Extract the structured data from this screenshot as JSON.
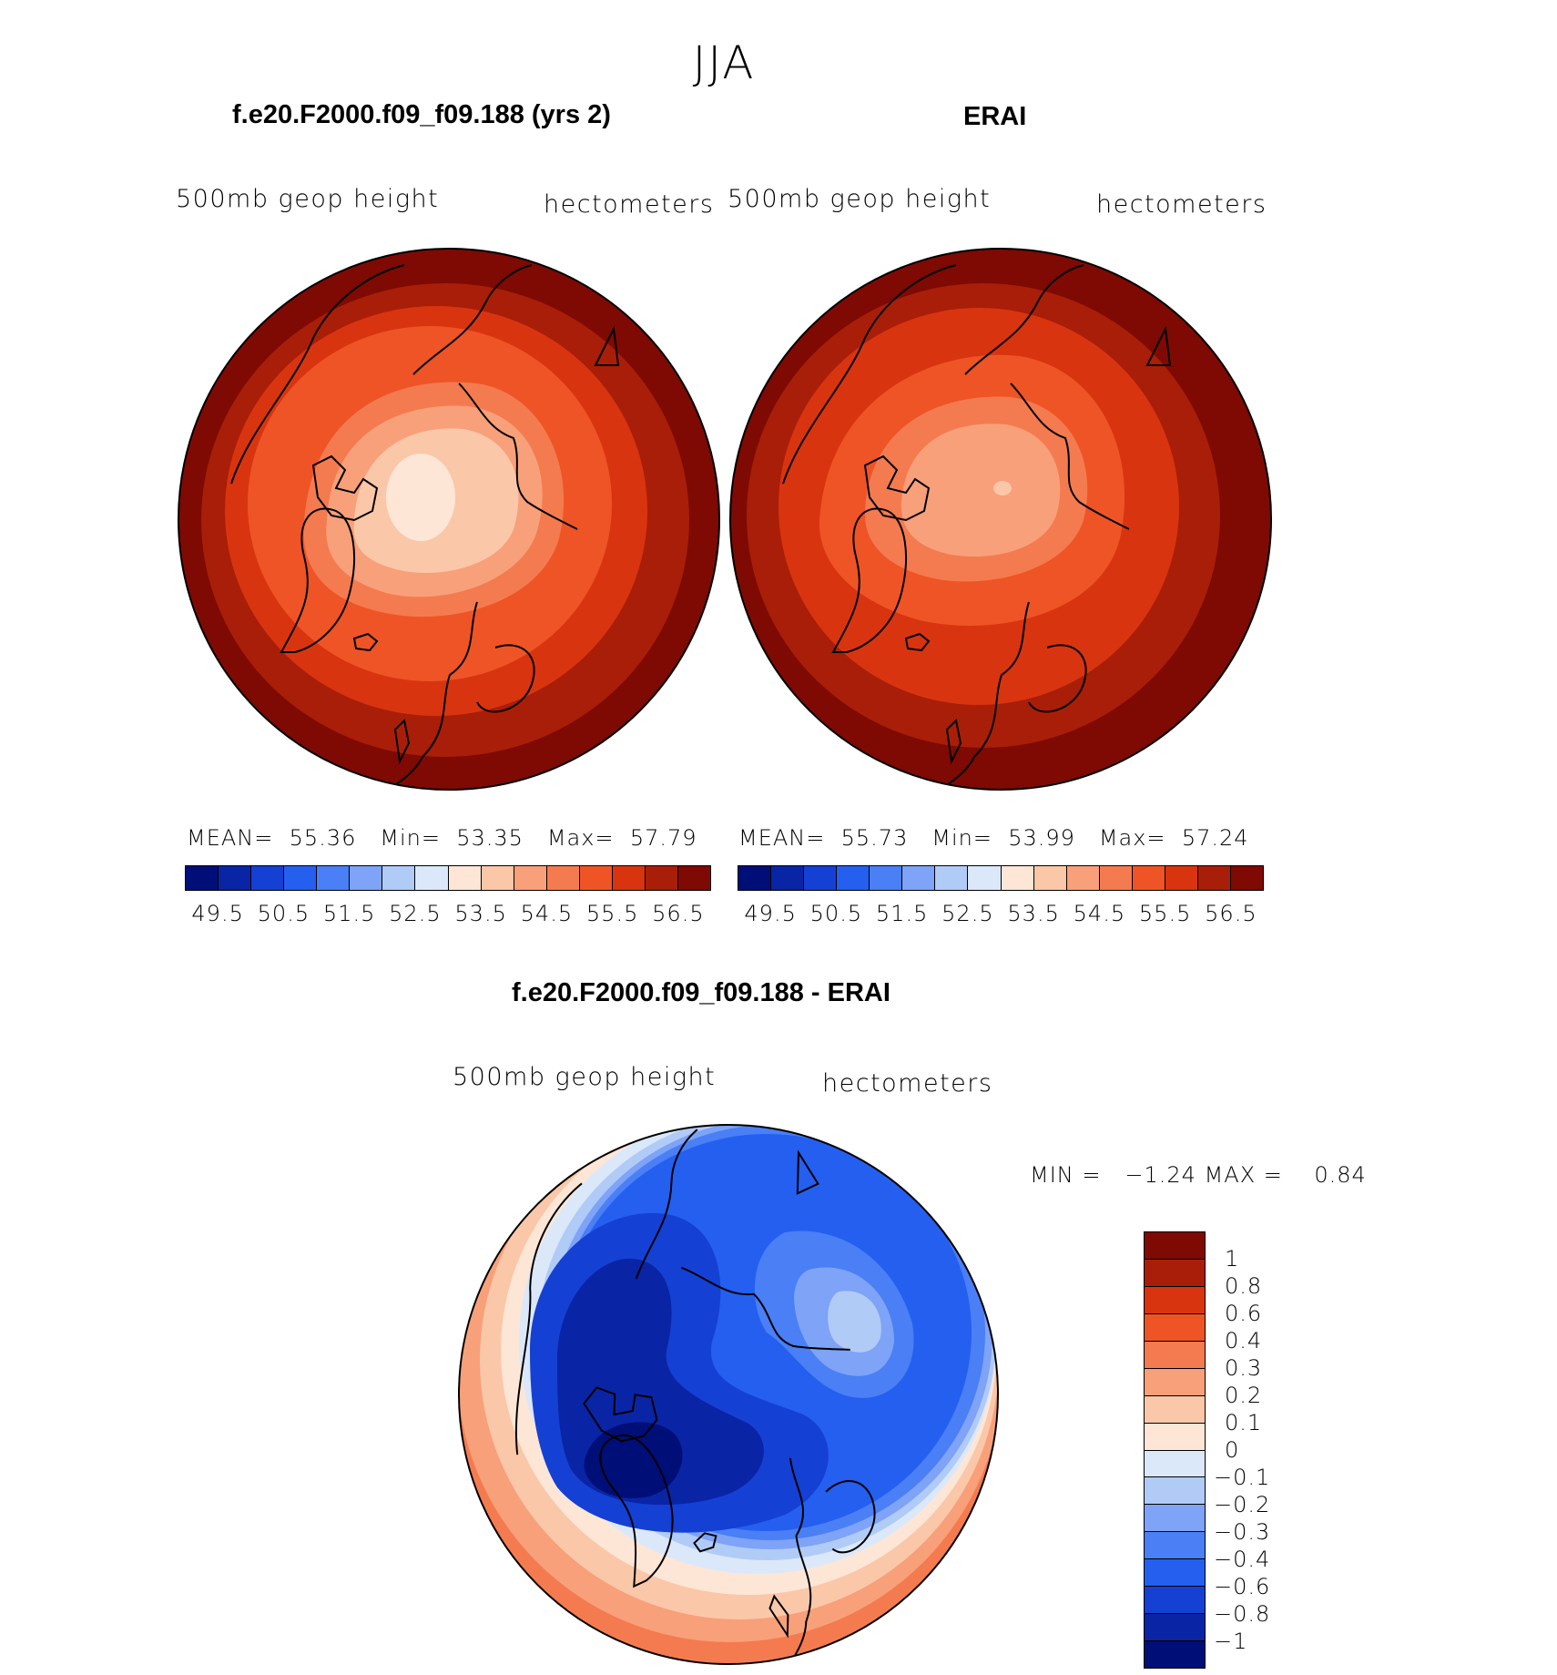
{
  "title": "JJA",
  "panels": [
    {
      "title": "f.e20.F2000.f09_f09.188 (yrs 2)",
      "variable": "500mb geop height",
      "units": "hectometers",
      "stats": {
        "mean_label": "MEAN=",
        "mean": "55.36",
        "min_label": "Min=",
        "min": "53.35",
        "max_label": "Max=",
        "max": "57.79"
      },
      "colorbar_ticks": [
        "49.5",
        "50.5",
        "51.5",
        "52.5",
        "53.5",
        "54.5",
        "55.5",
        "56.5"
      ]
    },
    {
      "title": "ERAI",
      "variable": "500mb geop height",
      "units": "hectometers",
      "stats": {
        "mean_label": "MEAN=",
        "mean": "55.73",
        "min_label": "Min=",
        "min": "53.99",
        "max_label": "Max=",
        "max": "57.24"
      },
      "colorbar_ticks": [
        "49.5",
        "50.5",
        "51.5",
        "52.5",
        "53.5",
        "54.5",
        "55.5",
        "56.5"
      ]
    },
    {
      "title": "f.e20.F2000.f09_f09.188 - ERAI",
      "variable": "500mb geop height",
      "units": "hectometers",
      "stats": {
        "min_label": "MIN =",
        "min": "−1.24",
        "max_label": "MAX =",
        "max": "0.84"
      },
      "colorbar_ticks": [
        "1",
        "0.8",
        "0.6",
        "0.4",
        "0.3",
        "0.2",
        "0.1",
        "0",
        "−0.1",
        "−0.2",
        "−0.3",
        "−0.4",
        "−0.6",
        "−0.8",
        "−1"
      ]
    }
  ],
  "palettes": {
    "height": [
      "#000e78",
      "#0a24a6",
      "#1540d4",
      "#245ff0",
      "#4a7ff5",
      "#7ea3f7",
      "#b1cbf7",
      "#dbe8fa",
      "#fde6d6",
      "#fbc7a9",
      "#f8a07a",
      "#f47b4f",
      "#ef5426",
      "#d93410",
      "#a91e08",
      "#7e0a03"
    ],
    "diff": [
      "#7e0a03",
      "#a91e08",
      "#d93410",
      "#ef5426",
      "#f47b4f",
      "#f8a07a",
      "#fbc7a9",
      "#fde6d6",
      "#dbe8fa",
      "#b1cbf7",
      "#7ea3f7",
      "#4a7ff5",
      "#245ff0",
      "#1540d4",
      "#0a24a6",
      "#000e78"
    ]
  },
  "chart_data": [
    {
      "type": "heatmap",
      "projection": "north polar stereographic",
      "title": "f.e20.F2000.f09_f09.188 (yrs 2)",
      "variable": "500mb geop height",
      "units": "hectometers",
      "mean": 55.36,
      "min": 53.35,
      "max": 57.79,
      "contour_levels": [
        49.5,
        50,
        50.5,
        51,
        51.5,
        52,
        52.5,
        53,
        53.5,
        54,
        54.5,
        55,
        55.5,
        56,
        56.5
      ]
    },
    {
      "type": "heatmap",
      "projection": "north polar stereographic",
      "title": "ERAI",
      "variable": "500mb geop height",
      "units": "hectometers",
      "mean": 55.73,
      "min": 53.99,
      "max": 57.24,
      "contour_levels": [
        49.5,
        50,
        50.5,
        51,
        51.5,
        52,
        52.5,
        53,
        53.5,
        54,
        54.5,
        55,
        55.5,
        56,
        56.5
      ]
    },
    {
      "type": "heatmap",
      "projection": "north polar stereographic",
      "title": "f.e20.F2000.f09_f09.188 - ERAI",
      "variable": "500mb geop height",
      "units": "hectometers",
      "min": -1.24,
      "max": 0.84,
      "contour_levels": [
        -1,
        -0.8,
        -0.6,
        -0.4,
        -0.3,
        -0.2,
        -0.1,
        0,
        0.1,
        0.2,
        0.3,
        0.4,
        0.6,
        0.8,
        1
      ]
    }
  ]
}
